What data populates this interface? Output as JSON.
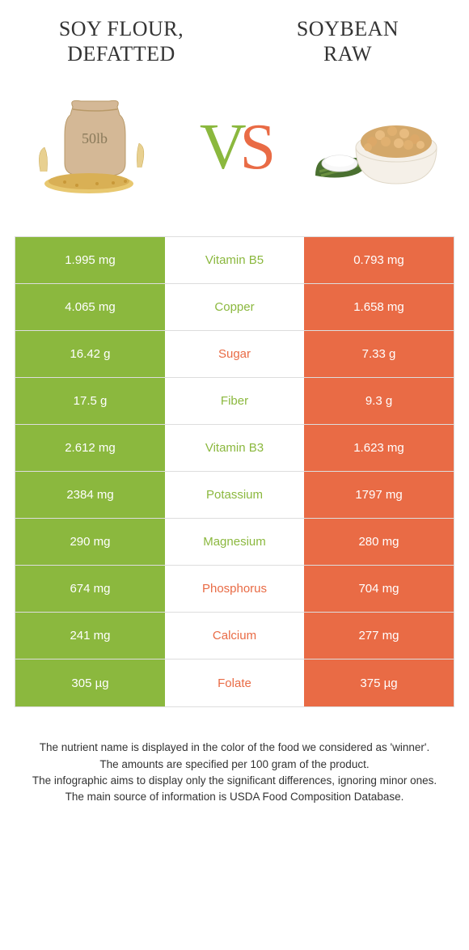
{
  "colors": {
    "left": "#8bb83e",
    "right": "#e96b45",
    "border": "#dddddd",
    "text": "#333333",
    "white": "#ffffff"
  },
  "title_left_line1": "Soy flour,",
  "title_left_line2": "defatted",
  "title_right_line1": "Soybean",
  "title_right_line2": "raw",
  "vs_v": "V",
  "vs_s": "S",
  "rows": [
    {
      "left": "1.995 mg",
      "mid": "Vitamin B5",
      "right": "0.793 mg",
      "winner": "left"
    },
    {
      "left": "4.065 mg",
      "mid": "Copper",
      "right": "1.658 mg",
      "winner": "left"
    },
    {
      "left": "16.42 g",
      "mid": "Sugar",
      "right": "7.33 g",
      "winner": "right"
    },
    {
      "left": "17.5 g",
      "mid": "Fiber",
      "right": "9.3 g",
      "winner": "left"
    },
    {
      "left": "2.612 mg",
      "mid": "Vitamin B3",
      "right": "1.623 mg",
      "winner": "left"
    },
    {
      "left": "2384 mg",
      "mid": "Potassium",
      "right": "1797 mg",
      "winner": "left"
    },
    {
      "left": "290 mg",
      "mid": "Magnesium",
      "right": "280 mg",
      "winner": "left"
    },
    {
      "left": "674 mg",
      "mid": "Phosphorus",
      "right": "704 mg",
      "winner": "right"
    },
    {
      "left": "241 mg",
      "mid": "Calcium",
      "right": "277 mg",
      "winner": "right"
    },
    {
      "left": "305 µg",
      "mid": "Folate",
      "right": "375 µg",
      "winner": "right"
    }
  ],
  "footer_lines": [
    "The nutrient name is displayed in the color of the food we considered as 'winner'.",
    "The amounts are specified per 100 gram of the product.",
    "The infographic aims to display only the significant differences, ignoring minor ones.",
    "The main source of information is USDA Food Composition Database."
  ]
}
